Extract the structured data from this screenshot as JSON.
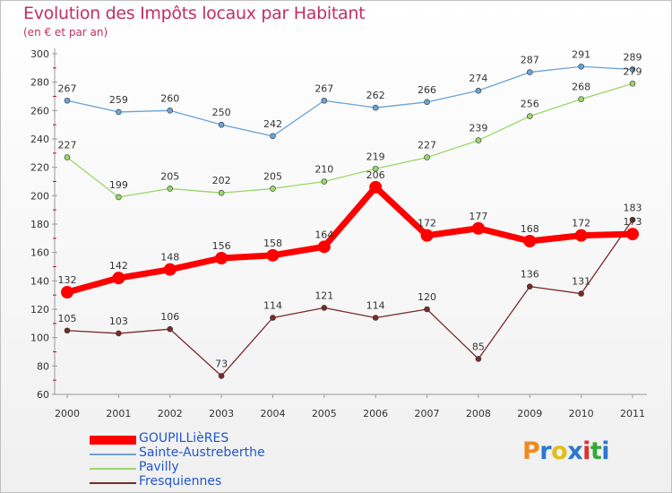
{
  "header": {
    "title": "Evolution des Impôts locaux par Habitant",
    "subtitle": "(en € et par an)"
  },
  "logo": {
    "letters": [
      "P",
      "r",
      "o",
      "x",
      "i",
      "t",
      "i"
    ],
    "colors": [
      "#f08a1c",
      "#2d76d2",
      "#e0be1e",
      "#2d76d2",
      "#e03030",
      "#36a836",
      "#2d76d2"
    ]
  },
  "chart_data": {
    "type": "line",
    "x": [
      2000,
      2001,
      2002,
      2003,
      2004,
      2005,
      2006,
      2007,
      2008,
      2009,
      2010,
      2011
    ],
    "ylim": [
      60,
      300
    ],
    "yticks": [
      60,
      80,
      100,
      120,
      140,
      160,
      180,
      200,
      220,
      240,
      260,
      280,
      300
    ],
    "grid": false,
    "legend_position": "bottom-left",
    "series": [
      {
        "name": "GOUPILLièRES",
        "color": "#ff0000",
        "emphasis": true,
        "values": [
          132,
          142,
          148,
          156,
          158,
          164,
          206,
          172,
          177,
          168,
          172,
          173
        ]
      },
      {
        "name": "Sainte-Austreberthe",
        "color": "#6aa3d6",
        "emphasis": false,
        "values": [
          267,
          259,
          260,
          250,
          242,
          267,
          262,
          266,
          274,
          287,
          291,
          289
        ]
      },
      {
        "name": "Pavilly",
        "color": "#9ad66a",
        "emphasis": false,
        "values": [
          227,
          199,
          205,
          202,
          205,
          210,
          219,
          227,
          239,
          256,
          268,
          279
        ]
      },
      {
        "name": "Fresquiennes",
        "color": "#7a2a2a",
        "emphasis": false,
        "values": [
          105,
          103,
          106,
          73,
          114,
          121,
          114,
          120,
          85,
          136,
          131,
          183
        ]
      }
    ]
  }
}
